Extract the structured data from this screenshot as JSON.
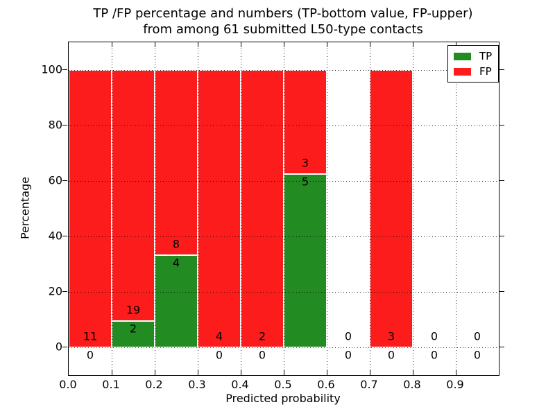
{
  "title": {
    "line1": "TP /FP percentage and numbers (TP-bottom value, FP-upper)",
    "line2": "from among 61 submitted L50-type contacts"
  },
  "axes": {
    "xlabel": "Predicted probability",
    "ylabel": "Percentage",
    "xticks": [
      "0.0",
      "0.1",
      "0.2",
      "0.3",
      "0.4",
      "0.5",
      "0.6",
      "0.7",
      "0.8",
      "0.9"
    ],
    "yticks": [
      "0",
      "20",
      "40",
      "60",
      "80",
      "100"
    ]
  },
  "legend": {
    "items": [
      {
        "label": "TP",
        "color_key": "tp"
      },
      {
        "label": "FP",
        "color_key": "fp"
      }
    ]
  },
  "colors": {
    "tp": "#228b22",
    "fp": "#fd1c1c",
    "grid": "#000000",
    "text": "#000000"
  },
  "chart_data": {
    "type": "bar",
    "stacked": true,
    "normalized_to_percent": true,
    "title": "TP /FP percentage and numbers (TP-bottom value, FP-upper) from among 61 submitted L50-type contacts",
    "xlabel": "Predicted probability",
    "ylabel": "Percentage",
    "xlim": [
      0.0,
      1.0
    ],
    "ylim": [
      -10,
      110
    ],
    "grid": "dotted",
    "legend_position": "upper right",
    "bin_edges": [
      0.0,
      0.1,
      0.2,
      0.3,
      0.4,
      0.5,
      0.6,
      0.7,
      0.8,
      0.9,
      1.0
    ],
    "categories": [
      "0.0-0.1",
      "0.1-0.2",
      "0.2-0.3",
      "0.3-0.4",
      "0.4-0.5",
      "0.5-0.6",
      "0.6-0.7",
      "0.7-0.8",
      "0.8-0.9",
      "0.9-1.0"
    ],
    "series": [
      {
        "name": "TP",
        "counts": [
          0,
          2,
          4,
          0,
          0,
          5,
          0,
          0,
          0,
          0
        ]
      },
      {
        "name": "FP",
        "counts": [
          11,
          19,
          8,
          4,
          2,
          3,
          0,
          3,
          0,
          0
        ]
      }
    ],
    "tp_percent": [
      0,
      9.52,
      33.33,
      0,
      0,
      62.5,
      0,
      0,
      0,
      0
    ],
    "total_submitted": 61
  }
}
